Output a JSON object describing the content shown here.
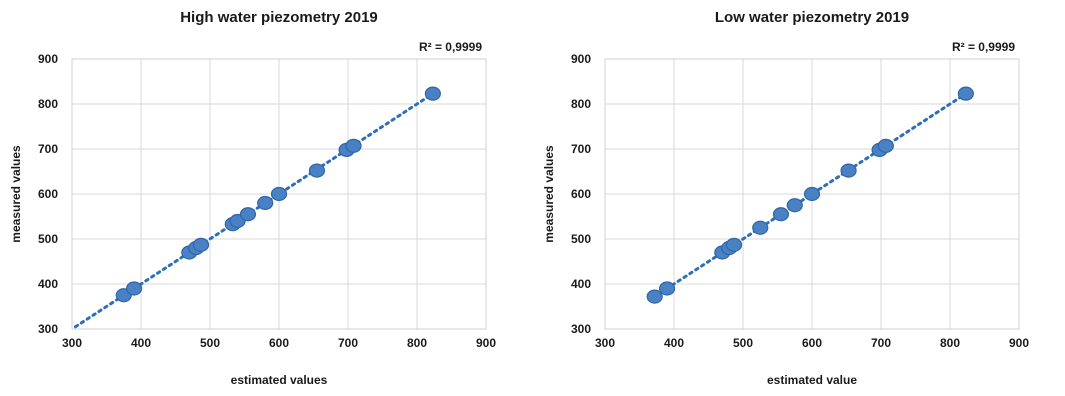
{
  "chart_data": [
    {
      "type": "scatter",
      "title": "High water piezometry 2019",
      "xlabel": "estimated values",
      "ylabel": "measured values",
      "xlim": [
        300,
        900
      ],
      "ylim": [
        300,
        900
      ],
      "xticks": [
        "300",
        "400",
        "500",
        "600",
        "700",
        "800",
        "900"
      ],
      "yticks": [
        "300",
        "400",
        "500",
        "600",
        "700",
        "800",
        "900"
      ],
      "grid": true,
      "trendline": {
        "style": "dotted",
        "from": [
          305,
          305
        ],
        "to": [
          822,
          822
        ]
      },
      "annotation": "R² = 0,9999",
      "x": [
        375,
        390,
        470,
        480,
        487,
        533,
        540,
        555,
        580,
        600,
        655,
        698,
        708,
        823
      ],
      "y": [
        375,
        390,
        470,
        480,
        487,
        533,
        540,
        555,
        580,
        600,
        652,
        698,
        707,
        823
      ]
    },
    {
      "type": "scatter",
      "title": "Low water piezometry 2019",
      "xlabel": "estimated value",
      "ylabel": "measured values",
      "xlim": [
        300,
        900
      ],
      "ylim": [
        300,
        900
      ],
      "xticks": [
        "300",
        "400",
        "500",
        "600",
        "700",
        "800",
        "900"
      ],
      "yticks": [
        "300",
        "400",
        "500",
        "600",
        "700",
        "800",
        "900"
      ],
      "grid": true,
      "trendline": {
        "style": "dotted",
        "from": [
          372,
          372
        ],
        "to": [
          822,
          822
        ]
      },
      "annotation": "R² = 0,9999",
      "x": [
        372,
        390,
        470,
        480,
        487,
        525,
        555,
        575,
        600,
        653,
        698,
        707,
        823
      ],
      "y": [
        372,
        390,
        470,
        480,
        487,
        525,
        555,
        575,
        600,
        652,
        698,
        707,
        823
      ]
    }
  ]
}
